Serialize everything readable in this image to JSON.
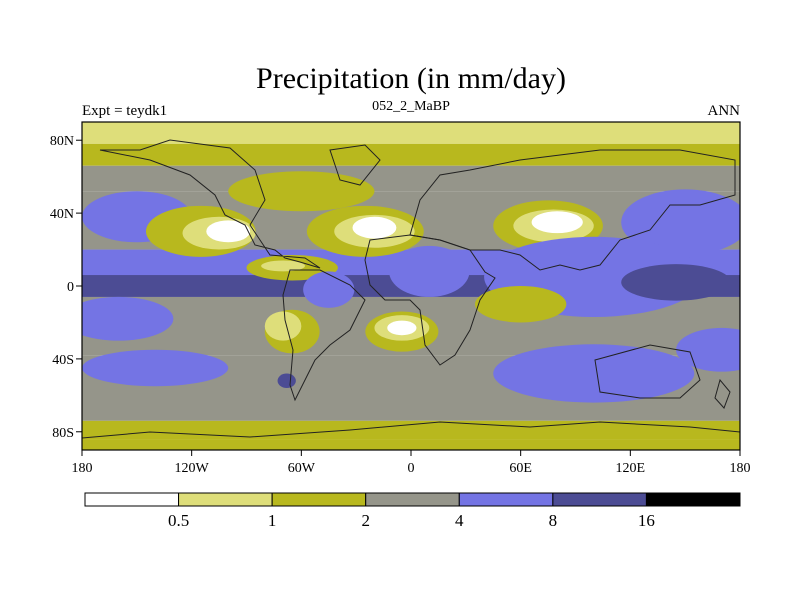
{
  "chart_data": {
    "type": "filled-contour-map",
    "title": "Precipitation (in mm/day)",
    "left_label": "Expt = teydk1",
    "center_label": "052_2_MaBP",
    "right_label": "ANN",
    "x_range": [
      -180,
      180
    ],
    "y_range": [
      -90,
      90
    ],
    "x_ticks": [
      {
        "value": -180,
        "label": "180"
      },
      {
        "value": -120,
        "label": "120W"
      },
      {
        "value": -60,
        "label": "60W"
      },
      {
        "value": 0,
        "label": "0"
      },
      {
        "value": 60,
        "label": "60E"
      },
      {
        "value": 120,
        "label": "120E"
      },
      {
        "value": 180,
        "label": "180"
      }
    ],
    "y_ticks": [
      {
        "value": 80,
        "label": "80N"
      },
      {
        "value": 40,
        "label": "40N"
      },
      {
        "value": 0,
        "label": "0"
      },
      {
        "value": -40,
        "label": "40S"
      },
      {
        "value": -80,
        "label": "80S"
      }
    ],
    "contour_levels": [
      "0.5",
      "1",
      "2",
      "4",
      "8",
      "16"
    ],
    "bin_colors": [
      "#ffffff",
      "#dede7a",
      "#b8b81e",
      "#95958a",
      "#7474e4",
      "#4c4c94",
      "#000000"
    ],
    "field_bands": [
      {
        "bin": 1,
        "lat": [
          78,
          90
        ]
      },
      {
        "bin": 2,
        "lat": [
          66,
          78
        ]
      },
      {
        "bin": 3,
        "lat": [
          52,
          66
        ]
      },
      {
        "bin": 3,
        "lat": [
          20,
          52
        ]
      },
      {
        "bin": 4,
        "lat": [
          -6,
          20
        ]
      },
      {
        "bin": 5,
        "lat": [
          -6,
          6
        ]
      },
      {
        "bin": 3,
        "lat": [
          -38,
          -6
        ]
      },
      {
        "bin": 3,
        "lat": [
          -74,
          -38
        ]
      },
      {
        "bin": 2,
        "lat": [
          -84,
          -74
        ]
      },
      {
        "bin": 2,
        "lat": [
          -90,
          -84
        ]
      }
    ],
    "field_blobs": [
      {
        "bin": 2,
        "lon": -60,
        "lat": 52,
        "rlon": 40,
        "rlat": 11
      },
      {
        "bin": 4,
        "lon": -150,
        "lat": 38,
        "rlon": 30,
        "rlat": 14
      },
      {
        "bin": 4,
        "lon": 150,
        "lat": 35,
        "rlon": 35,
        "rlat": 18
      },
      {
        "bin": 2,
        "lon": -115,
        "lat": 30,
        "rlon": 30,
        "rlat": 14
      },
      {
        "bin": 1,
        "lon": -105,
        "lat": 29,
        "rlon": 20,
        "rlat": 9
      },
      {
        "bin": 0,
        "lon": -100,
        "lat": 30,
        "rlon": 12,
        "rlat": 6
      },
      {
        "bin": 2,
        "lon": -25,
        "lat": 30,
        "rlon": 32,
        "rlat": 14
      },
      {
        "bin": 1,
        "lon": -20,
        "lat": 30,
        "rlon": 22,
        "rlat": 9
      },
      {
        "bin": 0,
        "lon": -20,
        "lat": 32,
        "rlon": 12,
        "rlat": 6
      },
      {
        "bin": 2,
        "lon": 75,
        "lat": 33,
        "rlon": 30,
        "rlat": 14
      },
      {
        "bin": 1,
        "lon": 78,
        "lat": 33,
        "rlon": 22,
        "rlat": 9
      },
      {
        "bin": 0,
        "lon": 80,
        "lat": 35,
        "rlon": 14,
        "rlat": 6
      },
      {
        "bin": 2,
        "lon": -65,
        "lat": 10,
        "rlon": 25,
        "rlat": 7
      },
      {
        "bin": 1,
        "lon": -70,
        "lat": 11,
        "rlon": 12,
        "rlat": 3
      },
      {
        "bin": 4,
        "lon": 10,
        "lat": 8,
        "rlon": 22,
        "rlat": 14
      },
      {
        "bin": 4,
        "lon": -45,
        "lat": -2,
        "rlon": 14,
        "rlat": 10
      },
      {
        "bin": 4,
        "lon": 100,
        "lat": 5,
        "rlon": 60,
        "rlat": 22
      },
      {
        "bin": 5,
        "lon": 145,
        "lat": 2,
        "rlon": 30,
        "rlat": 10
      },
      {
        "bin": 4,
        "lon": -160,
        "lat": -18,
        "rlon": 30,
        "rlat": 12
      },
      {
        "bin": 4,
        "lon": -140,
        "lat": -45,
        "rlon": 40,
        "rlat": 10
      },
      {
        "bin": 4,
        "lon": 100,
        "lat": -48,
        "rlon": 55,
        "rlat": 16
      },
      {
        "bin": 4,
        "lon": 170,
        "lat": -35,
        "rlon": 25,
        "rlat": 12
      },
      {
        "bin": 2,
        "lon": -65,
        "lat": -25,
        "rlon": 15,
        "rlat": 12
      },
      {
        "bin": 1,
        "lon": -70,
        "lat": -22,
        "rlon": 10,
        "rlat": 8
      },
      {
        "bin": 2,
        "lon": -5,
        "lat": -25,
        "rlon": 20,
        "rlat": 11
      },
      {
        "bin": 1,
        "lon": -5,
        "lat": -23,
        "rlon": 15,
        "rlat": 7
      },
      {
        "bin": 0,
        "lon": -5,
        "lat": -23,
        "rlon": 8,
        "rlat": 4
      },
      {
        "bin": 2,
        "lon": 60,
        "lat": -10,
        "rlon": 25,
        "rlat": 10
      },
      {
        "bin": 5,
        "lon": -68,
        "lat": -52,
        "rlon": 5,
        "rlat": 4
      }
    ]
  }
}
